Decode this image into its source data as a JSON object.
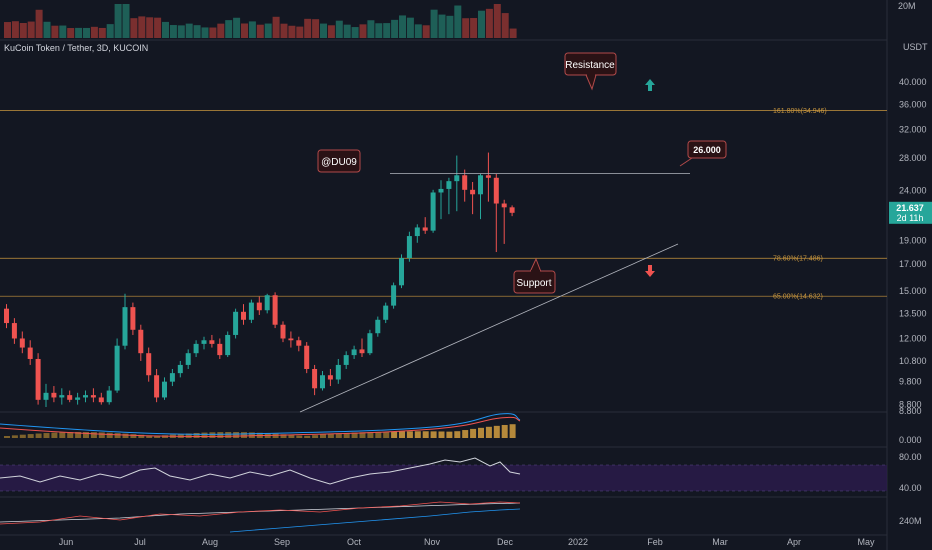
{
  "header": {
    "title": "KuCoin Token / Tether, 3D, KUCOIN",
    "currency": "USDT"
  },
  "price_tag": {
    "value": "21.637",
    "countdown": "2d 11h"
  },
  "annotations": {
    "resistance": "Resistance",
    "support": "Support",
    "author": "@DU09",
    "level": "26.000"
  },
  "colors": {
    "up": "#26a69a",
    "down": "#ef5350",
    "fib": "#c8963e",
    "callout": "#2a1215",
    "callout_border": "#b24a4a",
    "background": "#131722"
  },
  "chart_data": {
    "type": "candlestick",
    "price_axis": {
      "scale": "log",
      "ticks": [
        "40.000",
        "36.000",
        "32.000",
        "28.000",
        "24.000",
        "21.000",
        "19.000",
        "17.000",
        "15.000",
        "13.500",
        "12.000",
        "10.800",
        "9.800",
        "8.800"
      ],
      "range": [
        8.5,
        46
      ]
    },
    "time_axis": {
      "labels": [
        "Jun",
        "Jul",
        "Aug",
        "Sep",
        "Oct",
        "Nov",
        "Dec",
        "2022",
        "Feb",
        "Mar",
        "Apr",
        "May"
      ]
    },
    "volume_axis": {
      "ticks": [
        "20M"
      ]
    },
    "macd_axis": {
      "ticks": [
        "8.800",
        "0.000"
      ]
    },
    "rsi_axis": {
      "ticks": [
        "80.00",
        "40.00"
      ]
    },
    "bottom_axis": {
      "ticks": [
        "240M"
      ]
    },
    "fib_levels": [
      {
        "label": "161.80%(34.946)",
        "price": 34.946
      },
      {
        "label": "78.60%(17.486)",
        "price": 17.486
      },
      {
        "label": "65.00%(14.632)",
        "price": 14.632
      }
    ],
    "horizontal_level": 26.0,
    "last_price": 21.637,
    "candles": [
      {
        "o": 13.8,
        "h": 14.1,
        "l": 12.6,
        "c": 12.9
      },
      {
        "o": 12.9,
        "h": 13.2,
        "l": 11.7,
        "c": 12.0
      },
      {
        "o": 12.0,
        "h": 12.4,
        "l": 11.2,
        "c": 11.5
      },
      {
        "o": 11.5,
        "h": 11.9,
        "l": 10.6,
        "c": 10.9
      },
      {
        "o": 10.9,
        "h": 11.2,
        "l": 8.8,
        "c": 9.0
      },
      {
        "o": 9.0,
        "h": 9.7,
        "l": 8.7,
        "c": 9.3
      },
      {
        "o": 9.3,
        "h": 9.6,
        "l": 8.9,
        "c": 9.1
      },
      {
        "o": 9.1,
        "h": 9.5,
        "l": 8.8,
        "c": 9.2
      },
      {
        "o": 9.2,
        "h": 9.4,
        "l": 8.9,
        "c": 9.0
      },
      {
        "o": 9.0,
        "h": 9.3,
        "l": 8.8,
        "c": 9.1
      },
      {
        "o": 9.1,
        "h": 9.4,
        "l": 8.9,
        "c": 9.2
      },
      {
        "o": 9.2,
        "h": 9.5,
        "l": 8.9,
        "c": 9.1
      },
      {
        "o": 9.1,
        "h": 9.3,
        "l": 8.8,
        "c": 8.9
      },
      {
        "o": 8.9,
        "h": 9.6,
        "l": 8.8,
        "c": 9.4
      },
      {
        "o": 9.4,
        "h": 12.0,
        "l": 9.3,
        "c": 11.6
      },
      {
        "o": 11.6,
        "h": 14.8,
        "l": 11.4,
        "c": 13.9
      },
      {
        "o": 13.9,
        "h": 14.2,
        "l": 12.2,
        "c": 12.5
      },
      {
        "o": 12.5,
        "h": 12.8,
        "l": 10.8,
        "c": 11.2
      },
      {
        "o": 11.2,
        "h": 11.5,
        "l": 9.8,
        "c": 10.1
      },
      {
        "o": 10.1,
        "h": 10.4,
        "l": 8.9,
        "c": 9.1
      },
      {
        "o": 9.1,
        "h": 10.0,
        "l": 9.0,
        "c": 9.8
      },
      {
        "o": 9.8,
        "h": 10.4,
        "l": 9.6,
        "c": 10.2
      },
      {
        "o": 10.2,
        "h": 10.8,
        "l": 10.0,
        "c": 10.6
      },
      {
        "o": 10.6,
        "h": 11.4,
        "l": 10.4,
        "c": 11.2
      },
      {
        "o": 11.2,
        "h": 11.9,
        "l": 11.0,
        "c": 11.7
      },
      {
        "o": 11.7,
        "h": 12.1,
        "l": 11.4,
        "c": 11.9
      },
      {
        "o": 11.9,
        "h": 12.2,
        "l": 11.5,
        "c": 11.7
      },
      {
        "o": 11.7,
        "h": 12.0,
        "l": 10.9,
        "c": 11.1
      },
      {
        "o": 11.1,
        "h": 12.4,
        "l": 11.0,
        "c": 12.2
      },
      {
        "o": 12.2,
        "h": 13.8,
        "l": 12.0,
        "c": 13.6
      },
      {
        "o": 13.6,
        "h": 14.1,
        "l": 12.8,
        "c": 13.1
      },
      {
        "o": 13.1,
        "h": 14.4,
        "l": 12.9,
        "c": 14.2
      },
      {
        "o": 14.2,
        "h": 14.6,
        "l": 13.4,
        "c": 13.7
      },
      {
        "o": 13.7,
        "h": 14.8,
        "l": 13.5,
        "c": 14.7
      },
      {
        "o": 14.7,
        "h": 14.9,
        "l": 12.6,
        "c": 12.8
      },
      {
        "o": 12.8,
        "h": 13.0,
        "l": 11.8,
        "c": 12.0
      },
      {
        "o": 12.0,
        "h": 12.4,
        "l": 11.5,
        "c": 11.9
      },
      {
        "o": 11.9,
        "h": 12.1,
        "l": 11.3,
        "c": 11.6
      },
      {
        "o": 11.6,
        "h": 11.8,
        "l": 10.2,
        "c": 10.4
      },
      {
        "o": 10.4,
        "h": 10.6,
        "l": 9.2,
        "c": 9.5
      },
      {
        "o": 9.5,
        "h": 10.3,
        "l": 9.4,
        "c": 10.1
      },
      {
        "o": 10.1,
        "h": 10.4,
        "l": 9.6,
        "c": 9.9
      },
      {
        "o": 9.9,
        "h": 10.9,
        "l": 9.7,
        "c": 10.6
      },
      {
        "o": 10.6,
        "h": 11.3,
        "l": 10.4,
        "c": 11.1
      },
      {
        "o": 11.1,
        "h": 11.6,
        "l": 10.9,
        "c": 11.4
      },
      {
        "o": 11.4,
        "h": 12.0,
        "l": 11.0,
        "c": 11.2
      },
      {
        "o": 11.2,
        "h": 12.5,
        "l": 11.1,
        "c": 12.3
      },
      {
        "o": 12.3,
        "h": 13.3,
        "l": 12.1,
        "c": 13.1
      },
      {
        "o": 13.1,
        "h": 14.2,
        "l": 12.9,
        "c": 14.0
      },
      {
        "o": 14.0,
        "h": 15.6,
        "l": 13.8,
        "c": 15.4
      },
      {
        "o": 15.4,
        "h": 17.8,
        "l": 15.2,
        "c": 17.5
      },
      {
        "o": 17.5,
        "h": 19.8,
        "l": 17.2,
        "c": 19.4
      },
      {
        "o": 19.4,
        "h": 20.5,
        "l": 18.8,
        "c": 20.2
      },
      {
        "o": 20.2,
        "h": 21.2,
        "l": 19.6,
        "c": 19.9
      },
      {
        "o": 19.9,
        "h": 24.1,
        "l": 19.7,
        "c": 23.8
      },
      {
        "o": 23.8,
        "h": 25.2,
        "l": 21.0,
        "c": 24.2
      },
      {
        "o": 24.2,
        "h": 25.5,
        "l": 21.5,
        "c": 25.1
      },
      {
        "o": 25.1,
        "h": 28.3,
        "l": 21.8,
        "c": 25.8
      },
      {
        "o": 25.8,
        "h": 26.5,
        "l": 22.8,
        "c": 24.1
      },
      {
        "o": 24.1,
        "h": 25.0,
        "l": 21.5,
        "c": 23.6
      },
      {
        "o": 23.6,
        "h": 26.0,
        "l": 21.0,
        "c": 25.8
      },
      {
        "o": 25.8,
        "h": 28.7,
        "l": 22.8,
        "c": 25.5
      },
      {
        "o": 25.5,
        "h": 26.0,
        "l": 18.0,
        "c": 22.6
      },
      {
        "o": 22.6,
        "h": 23.0,
        "l": 18.7,
        "c": 22.2
      },
      {
        "o": 22.2,
        "h": 22.4,
        "l": 21.3,
        "c": 21.637
      }
    ]
  }
}
